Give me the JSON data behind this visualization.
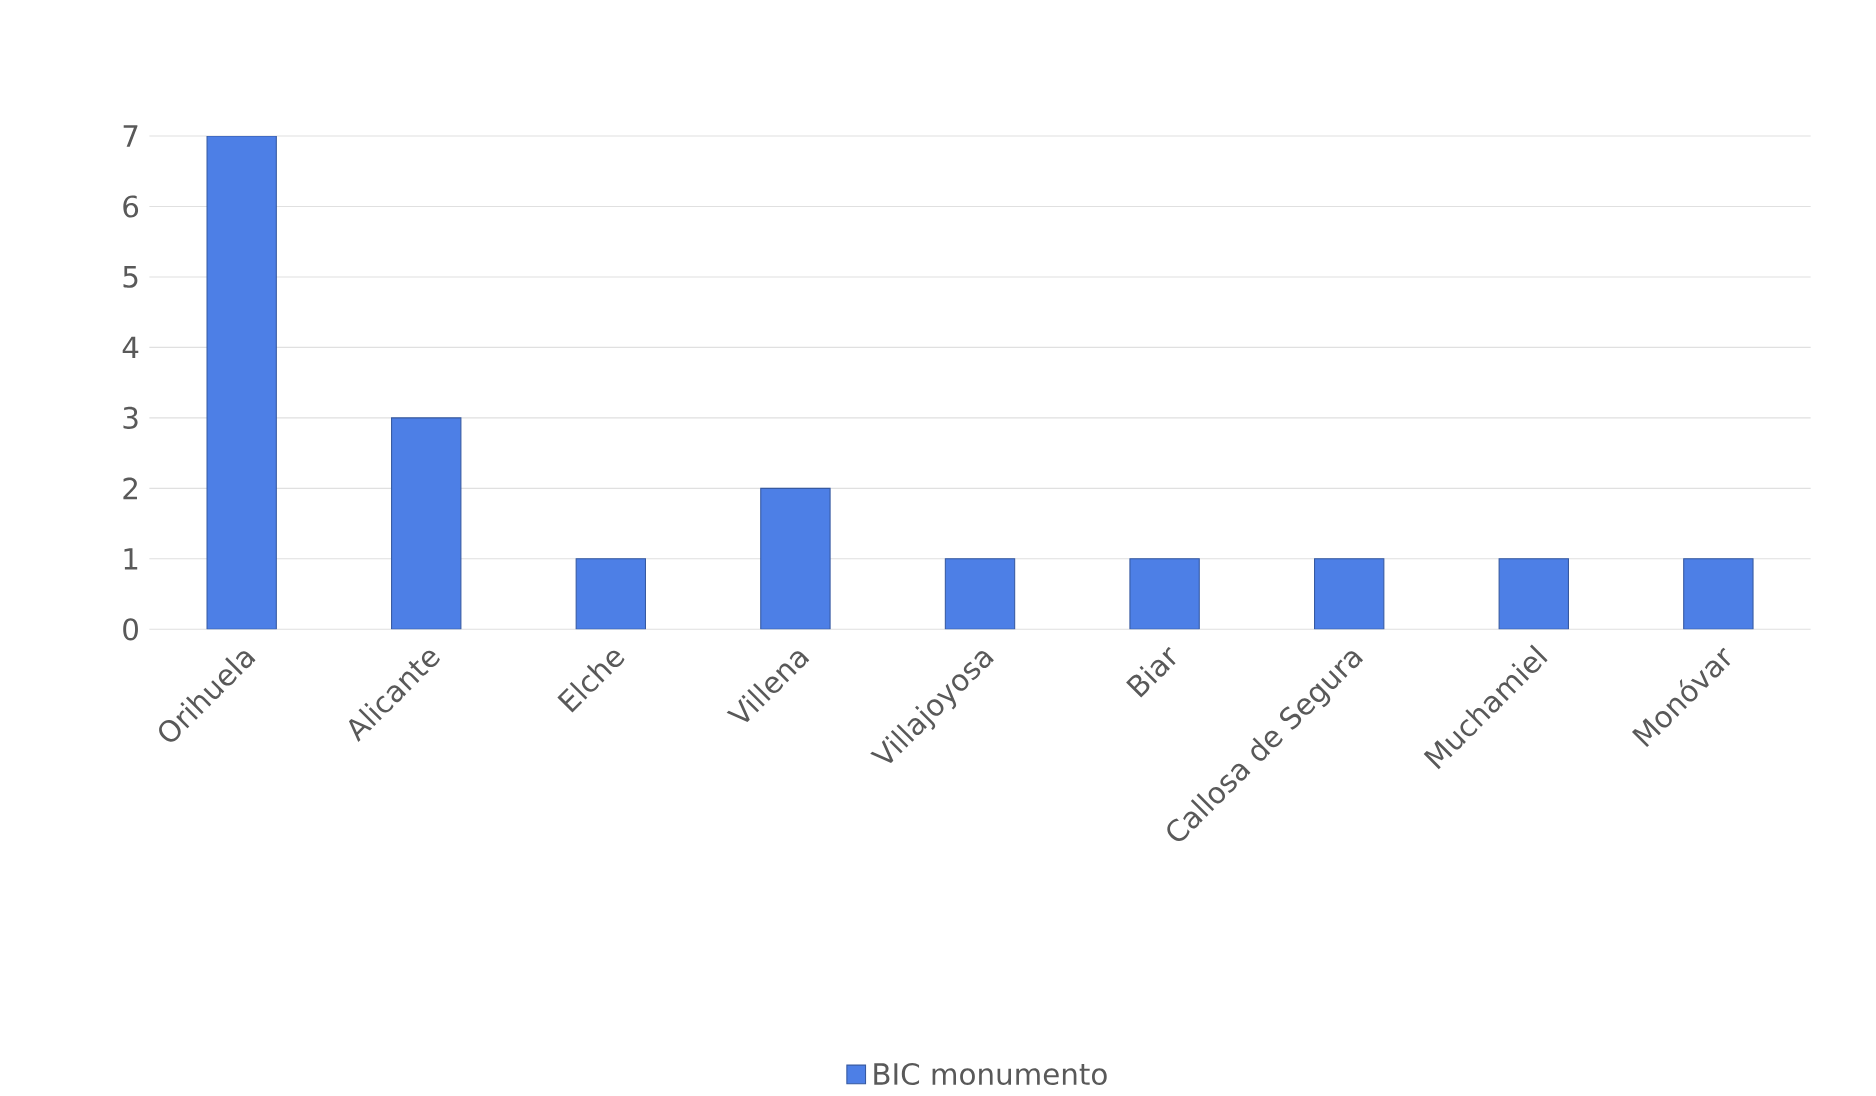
{
  "chart_data": {
    "type": "bar",
    "categories": [
      "Orihuela",
      "Alicante",
      "Elche",
      "Villena",
      "Villajoyosa",
      "Biar",
      "Callosa de Segura",
      "Muchamiel",
      "Monóvar"
    ],
    "series": [
      {
        "name": "BIC monumento",
        "color": "#4d7fe6",
        "values": [
          7,
          3,
          1,
          2,
          1,
          1,
          1,
          1,
          1
        ]
      }
    ],
    "ylim": [
      0,
      7
    ],
    "yticks": [
      0,
      1,
      2,
      3,
      4,
      5,
      6,
      7
    ],
    "grid": "y",
    "legend": "bottom"
  }
}
